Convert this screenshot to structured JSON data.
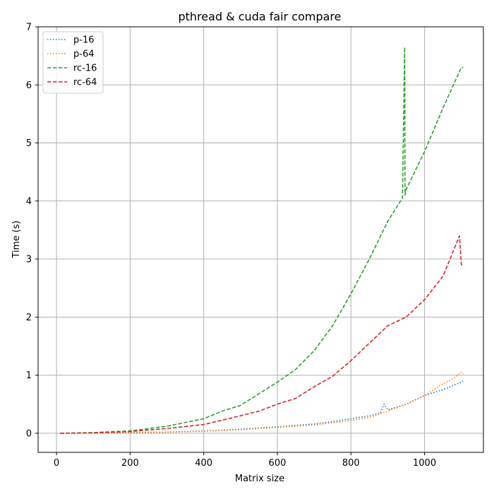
{
  "chart_data": {
    "type": "line",
    "title": "pthread & cuda fair compare",
    "xlabel": "Matrix size",
    "ylabel": "Time (s)",
    "xlim": [
      -50,
      1160
    ],
    "ylim": [
      -0.33,
      7.0
    ],
    "xticks": [
      "0",
      "200",
      "400",
      "600",
      "800",
      "1000"
    ],
    "xtick_values": [
      0,
      200,
      400,
      600,
      800,
      1000
    ],
    "yticks": [
      "0",
      "1",
      "2",
      "3",
      "4",
      "5",
      "6",
      "7"
    ],
    "ytick_values": [
      0,
      1,
      2,
      3,
      4,
      5,
      6,
      7
    ],
    "grid": true,
    "legend_position": "upper-left",
    "series": [
      {
        "name": "p-16",
        "color": "#1f77b4",
        "style": "dotted",
        "x": [
          10,
          100,
          200,
          300,
          400,
          500,
          600,
          700,
          750,
          800,
          850,
          880,
          890,
          900,
          950,
          1000,
          1050,
          1100,
          1105
        ],
        "y": [
          0.0,
          0.003,
          0.01,
          0.02,
          0.04,
          0.07,
          0.11,
          0.16,
          0.2,
          0.25,
          0.3,
          0.35,
          0.5,
          0.4,
          0.5,
          0.65,
          0.75,
          0.88,
          0.9
        ]
      },
      {
        "name": "p-64",
        "color": "#ff7f0e",
        "style": "dotted",
        "x": [
          10,
          100,
          200,
          300,
          400,
          500,
          600,
          700,
          750,
          800,
          850,
          900,
          950,
          1000,
          1050,
          1080,
          1100,
          1105
        ],
        "y": [
          0.0,
          0.003,
          0.008,
          0.018,
          0.035,
          0.06,
          0.1,
          0.14,
          0.18,
          0.22,
          0.27,
          0.38,
          0.5,
          0.65,
          0.85,
          0.95,
          1.05,
          1.02
        ]
      },
      {
        "name": "rc-16",
        "color": "#2ca02c",
        "style": "dashed",
        "x": [
          10,
          100,
          200,
          300,
          400,
          450,
          500,
          550,
          600,
          650,
          700,
          750,
          800,
          850,
          900,
          940,
          946,
          947,
          950,
          1000,
          1050,
          1100,
          1105
        ],
        "y": [
          0.0,
          0.01,
          0.04,
          0.12,
          0.25,
          0.38,
          0.48,
          0.68,
          0.88,
          1.1,
          1.42,
          1.85,
          2.4,
          3.0,
          3.65,
          4.05,
          6.65,
          4.1,
          4.2,
          4.85,
          5.6,
          6.3,
          6.3
        ]
      },
      {
        "name": "rc-64",
        "color": "#d62728",
        "style": "dashed",
        "x": [
          10,
          100,
          200,
          300,
          400,
          500,
          550,
          600,
          650,
          700,
          750,
          800,
          850,
          900,
          950,
          1000,
          1050,
          1095,
          1100,
          1105
        ],
        "y": [
          0.0,
          0.005,
          0.03,
          0.08,
          0.15,
          0.3,
          0.38,
          0.5,
          0.6,
          0.8,
          0.98,
          1.25,
          1.55,
          1.85,
          2.0,
          2.3,
          2.7,
          3.4,
          2.9,
          2.9
        ]
      }
    ]
  }
}
